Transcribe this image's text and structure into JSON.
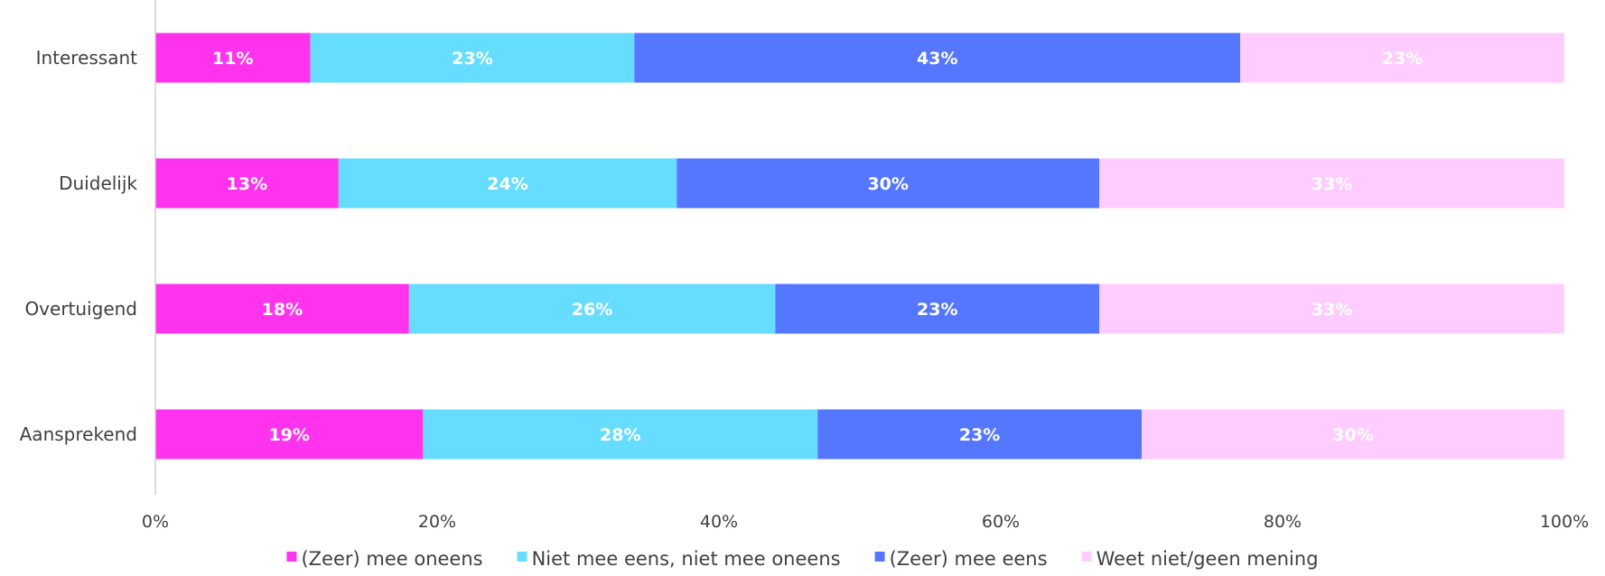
{
  "chart_data": {
    "type": "bar",
    "orientation": "horizontal",
    "stacked": true,
    "categories": [
      "Interessant",
      "Duidelijk",
      "Overtuigend",
      "Aansprekend"
    ],
    "series": [
      {
        "name": "(Zeer) mee oneens",
        "color": "#FF33EE",
        "values": [
          11,
          13,
          18,
          19
        ],
        "labels": [
          "11%",
          "13%",
          "18%",
          "19%"
        ]
      },
      {
        "name": "Niet mee eens, niet mee oneens",
        "color": "#66DDFF",
        "values": [
          23,
          24,
          26,
          28
        ],
        "labels": [
          "23%",
          "24%",
          "26%",
          "28%"
        ]
      },
      {
        "name": "(Zeer) mee eens",
        "color": "#5577FF",
        "values": [
          43,
          30,
          23,
          23
        ],
        "labels": [
          "43%",
          "30%",
          "23%",
          "23%"
        ]
      },
      {
        "name": "Weet niet/geen mening",
        "color": "#FFCCFF",
        "values": [
          23,
          33,
          33,
          30
        ],
        "labels": [
          "23%",
          "33%",
          "33%",
          "30%"
        ]
      }
    ],
    "xlim": [
      0,
      100
    ],
    "xticks": [
      0,
      20,
      40,
      60,
      80,
      100
    ],
    "xtick_labels": [
      "0%",
      "20%",
      "40%",
      "60%",
      "80%",
      "100%"
    ],
    "grid": false,
    "legend_position": "bottom"
  }
}
